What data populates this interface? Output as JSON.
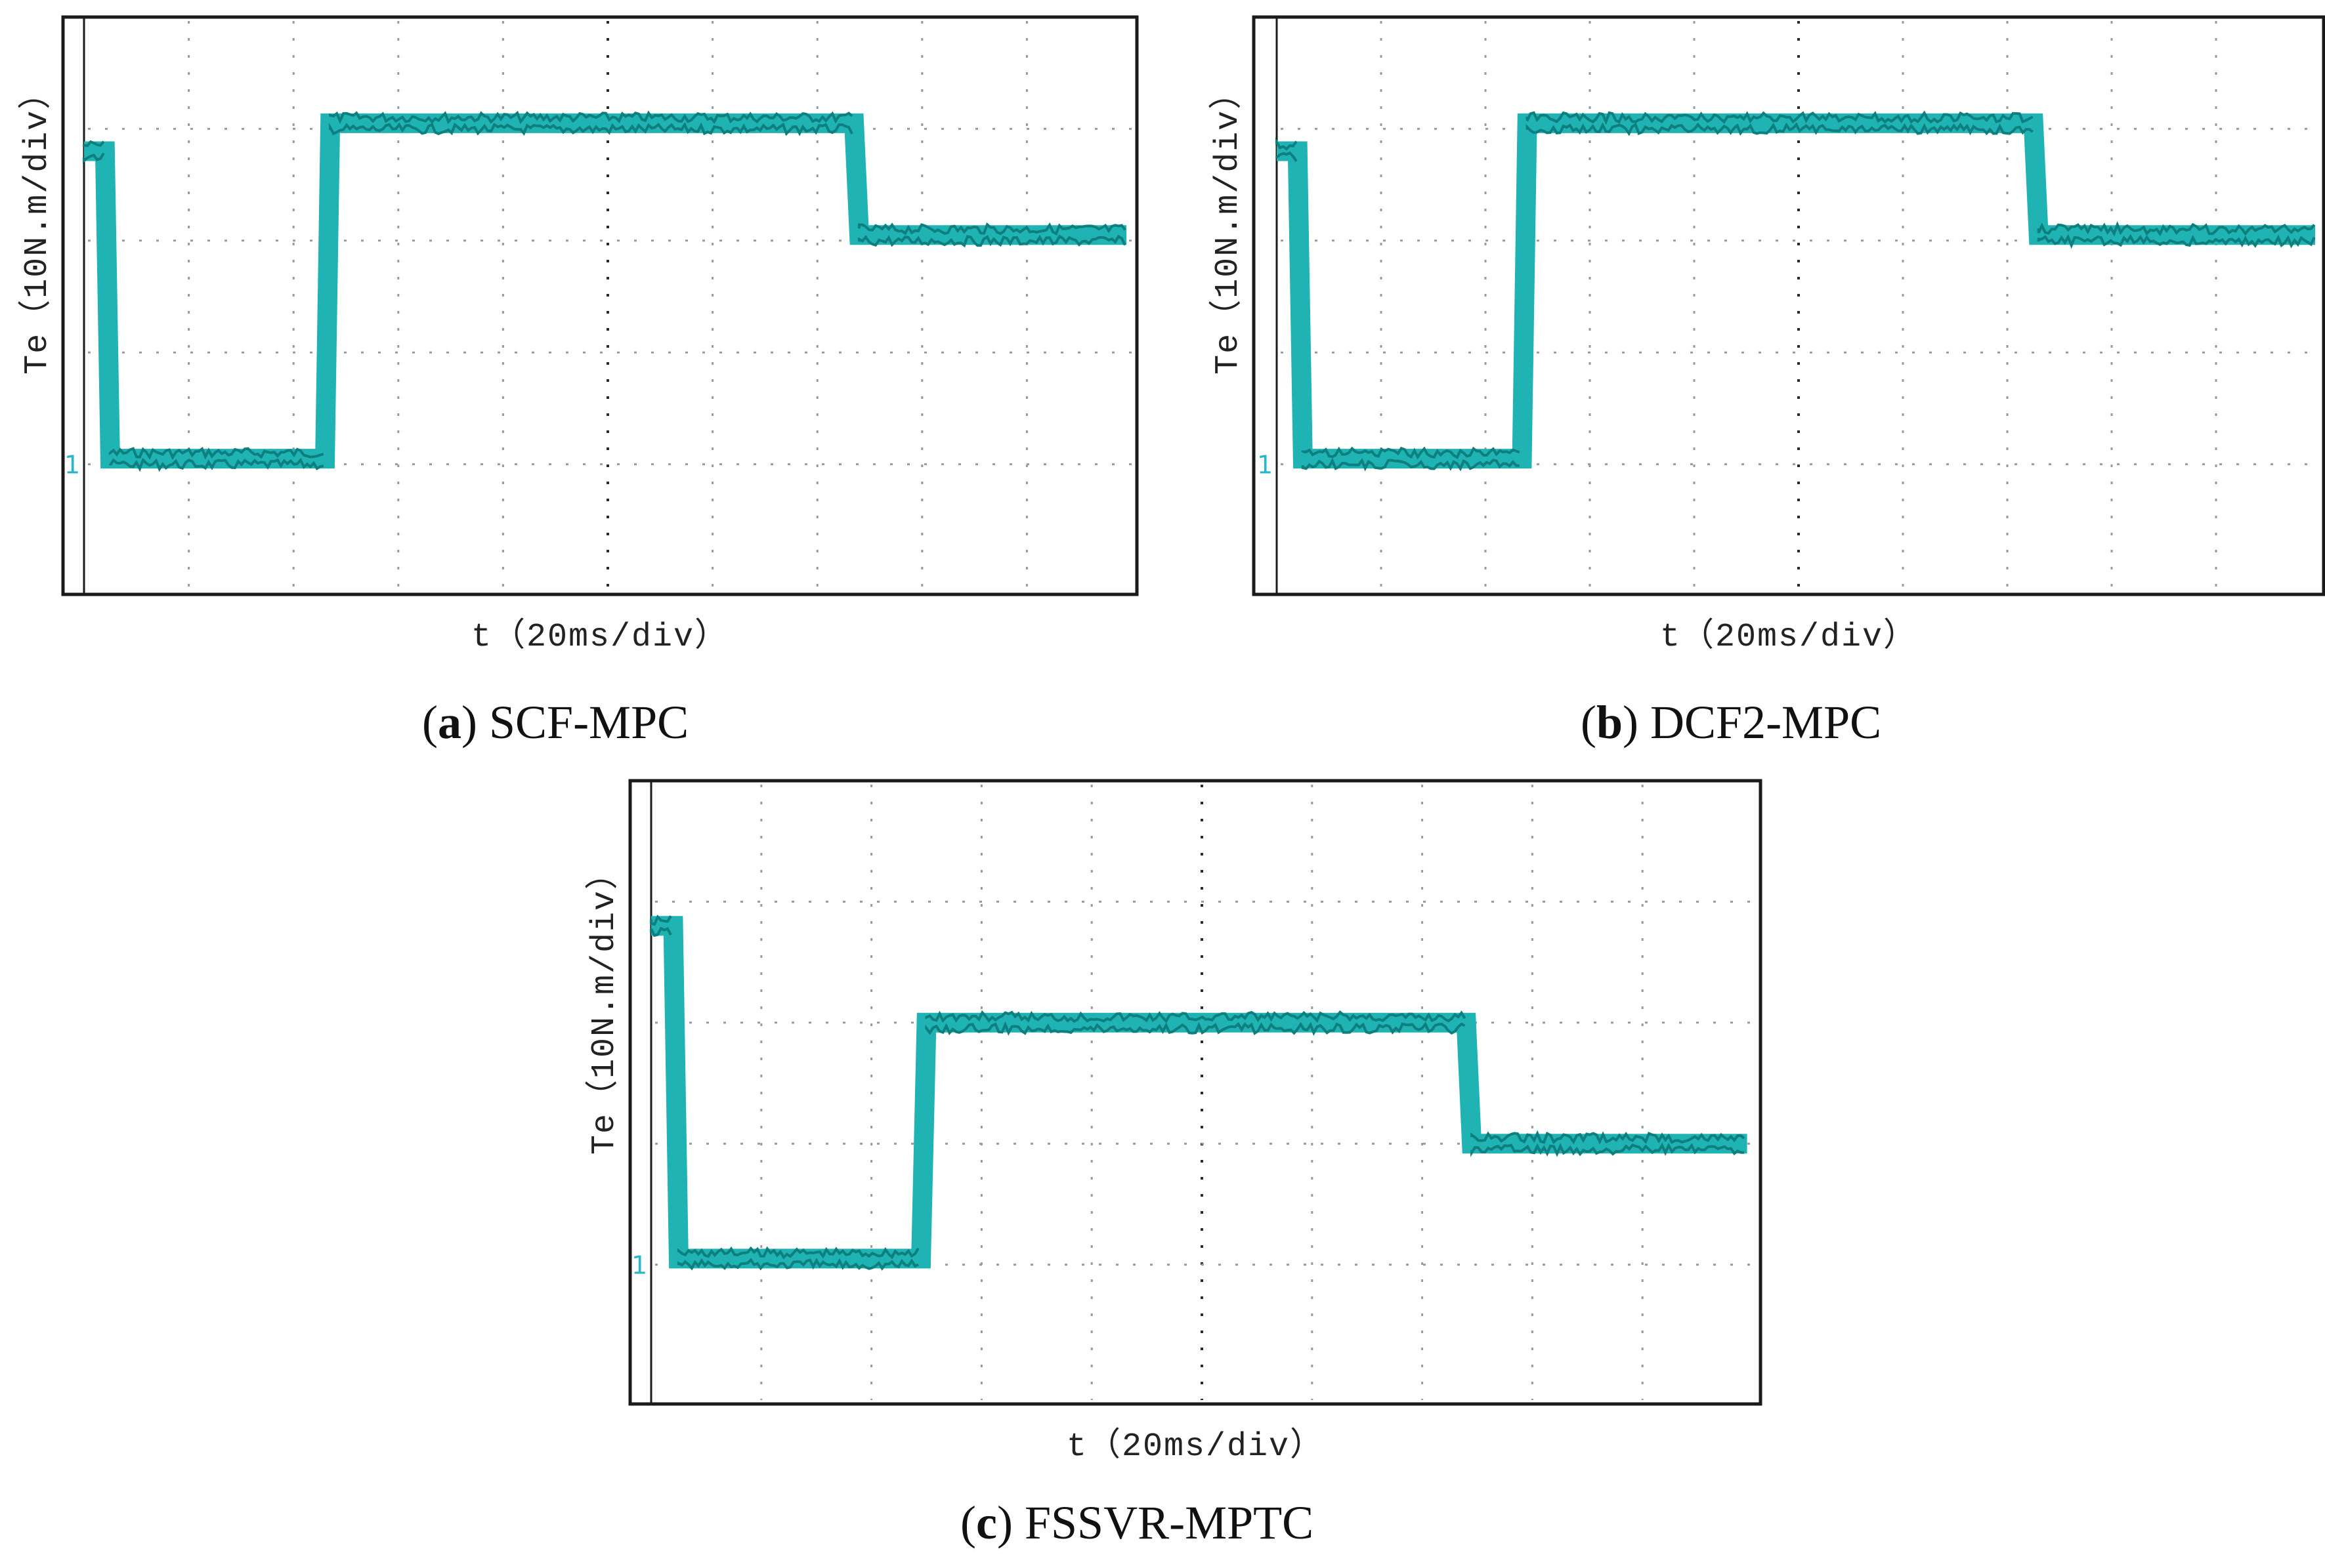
{
  "chart_data": [
    {
      "id": "a",
      "type": "line",
      "panel_letter": "a",
      "caption": "SCF-MPC",
      "ylabel": "Te（10N.m/div）",
      "xlabel": "t（20ms/div）",
      "x_divisions": 10,
      "y_divisions": 5,
      "series": [
        {
          "name": "Te",
          "color": "#1fb3b3",
          "x": [
            0,
            0.2,
            0.25,
            2.3,
            2.35,
            7.35,
            7.4,
            9.95
          ],
          "y": [
            2.8,
            2.8,
            0.05,
            0.05,
            3.05,
            3.05,
            2.05,
            2.05
          ]
        }
      ]
    },
    {
      "id": "b",
      "type": "line",
      "panel_letter": "b",
      "caption": "DCF2-MPC",
      "ylabel": "Te（10N.m/div）",
      "xlabel": "t（20ms/div）",
      "x_divisions": 10,
      "y_divisions": 5,
      "series": [
        {
          "name": "Te",
          "color": "#1fb3b3",
          "x": [
            0,
            0.2,
            0.25,
            2.35,
            2.4,
            7.25,
            7.3,
            9.95
          ],
          "y": [
            2.8,
            2.8,
            0.05,
            0.05,
            3.05,
            3.05,
            2.05,
            2.05
          ]
        }
      ]
    },
    {
      "id": "c",
      "type": "line",
      "panel_letter": "c",
      "caption": "FSSVR-MPTC",
      "ylabel": "Te（10N.m/div）",
      "xlabel": "t（20ms/div）",
      "x_divisions": 10,
      "y_divisions": 5,
      "series": [
        {
          "name": "Te",
          "color": "#1fb3b3",
          "x": [
            0,
            0.2,
            0.25,
            2.45,
            2.5,
            7.4,
            7.45,
            9.95
          ],
          "y": [
            2.8,
            2.8,
            0.05,
            0.05,
            2.0,
            2.0,
            1.0,
            1.0
          ]
        }
      ]
    }
  ],
  "marker_symbol": "1"
}
